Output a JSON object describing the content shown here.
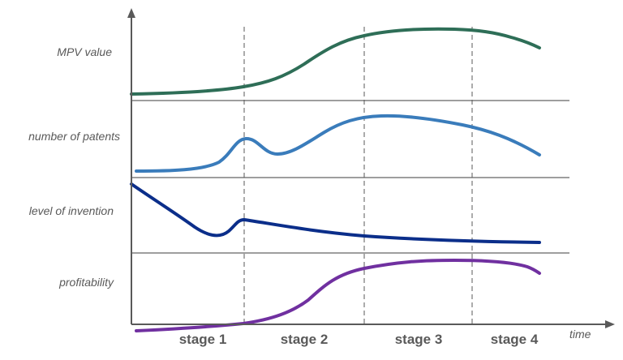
{
  "rows": [
    {
      "label": "MPV value",
      "color": "#2E6E57"
    },
    {
      "label": "number of patents",
      "color": "#3A7CBB"
    },
    {
      "label": "level of invention",
      "color": "#0B2E8A"
    },
    {
      "label": "profitability",
      "color": "#7030A0"
    }
  ],
  "stages": [
    {
      "label": "stage 1"
    },
    {
      "label": "stage 2"
    },
    {
      "label": "stage 3"
    },
    {
      "label": "stage 4"
    }
  ],
  "axis": {
    "x_label": "time"
  },
  "colors": {
    "axis": "#595959",
    "divider": "#7f7f7f",
    "dashed": "#595959"
  }
}
